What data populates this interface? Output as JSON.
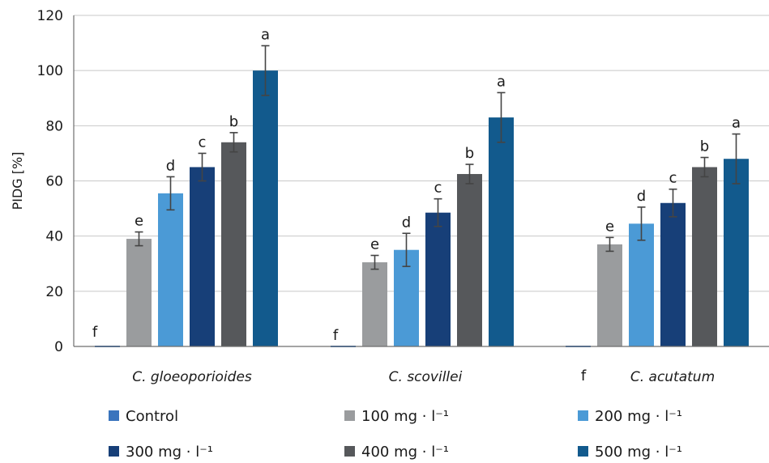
{
  "chart_data": {
    "type": "bar",
    "ylabel": "PIDG [%]",
    "ylim": [
      0,
      120
    ],
    "yticks": [
      "0",
      "20",
      "40",
      "60",
      "80",
      "100",
      "120"
    ],
    "grid": true,
    "legend_position": "bottom",
    "categories": [
      "C. gloeoporioides",
      "C. scovillei",
      "C. acutatum"
    ],
    "series": [
      {
        "name": "Control",
        "color": "#3a74bd",
        "values": [
          0,
          0,
          0
        ],
        "errors": [
          0,
          0,
          0
        ],
        "letters": [
          "f",
          "f",
          "f"
        ]
      },
      {
        "name": "100 mg · l⁻¹",
        "color": "#9a9c9e",
        "values": [
          39,
          30.5,
          37
        ],
        "errors": [
          2.5,
          2.5,
          2.5
        ],
        "letters": [
          "e",
          "e",
          "e"
        ]
      },
      {
        "name": "200 mg · l⁻¹",
        "color": "#4b9ad6",
        "values": [
          55.5,
          35,
          44.5
        ],
        "errors": [
          6,
          6,
          6
        ],
        "letters": [
          "d",
          "d",
          "d"
        ]
      },
      {
        "name": "300 mg · l⁻¹",
        "color": "#173f78",
        "values": [
          65,
          48.5,
          52
        ],
        "errors": [
          5,
          5,
          5
        ],
        "letters": [
          "c",
          "c",
          "c"
        ]
      },
      {
        "name": "400 mg · l⁻¹",
        "color": "#56585b",
        "values": [
          74,
          62.5,
          65
        ],
        "errors": [
          3.5,
          3.5,
          3.5
        ],
        "letters": [
          "b",
          "b",
          "b"
        ]
      },
      {
        "name": "500 mg · l⁻¹",
        "color": "#125a8d",
        "values": [
          100,
          83,
          68
        ],
        "errors": [
          9,
          9,
          9
        ],
        "letters": [
          "a",
          "a",
          "a"
        ]
      }
    ]
  }
}
